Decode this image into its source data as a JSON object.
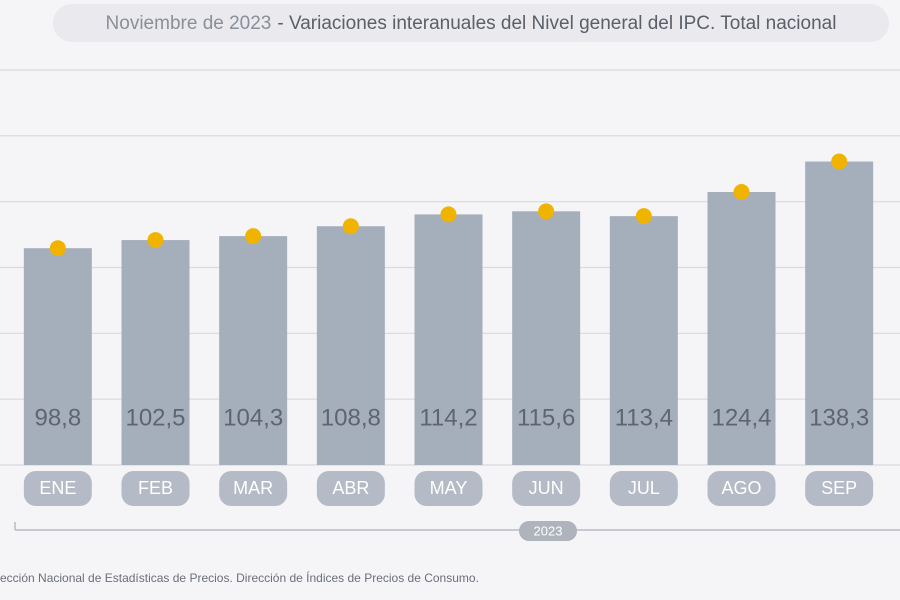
{
  "chart_data": {
    "type": "bar",
    "date_label": "Noviembre de 2023",
    "title": "- Variaciones interanuales del Nivel general del IPC. Total nacional",
    "categories": [
      "ENE",
      "FEB",
      "MAR",
      "ABR",
      "MAY",
      "JUN",
      "JUL",
      "AGO",
      "SEP"
    ],
    "values": [
      98.8,
      102.5,
      104.3,
      108.8,
      114.2,
      115.6,
      113.4,
      124.4,
      138.3
    ],
    "value_labels": [
      "98,8",
      "102,5",
      "104,3",
      "108,8",
      "114,2",
      "115,6",
      "113,4",
      "124,4",
      "138,3"
    ],
    "color": "#a5aebb",
    "marker_color": "#f0b400",
    "ylim": [
      0,
      180
    ],
    "grid_lines": [
      0,
      30,
      60,
      90,
      120,
      150,
      180
    ],
    "x_group_label": "2023",
    "source": "ección Nacional de Estadísticas de Precios. Dirección de Índices de Precios de Consumo."
  }
}
